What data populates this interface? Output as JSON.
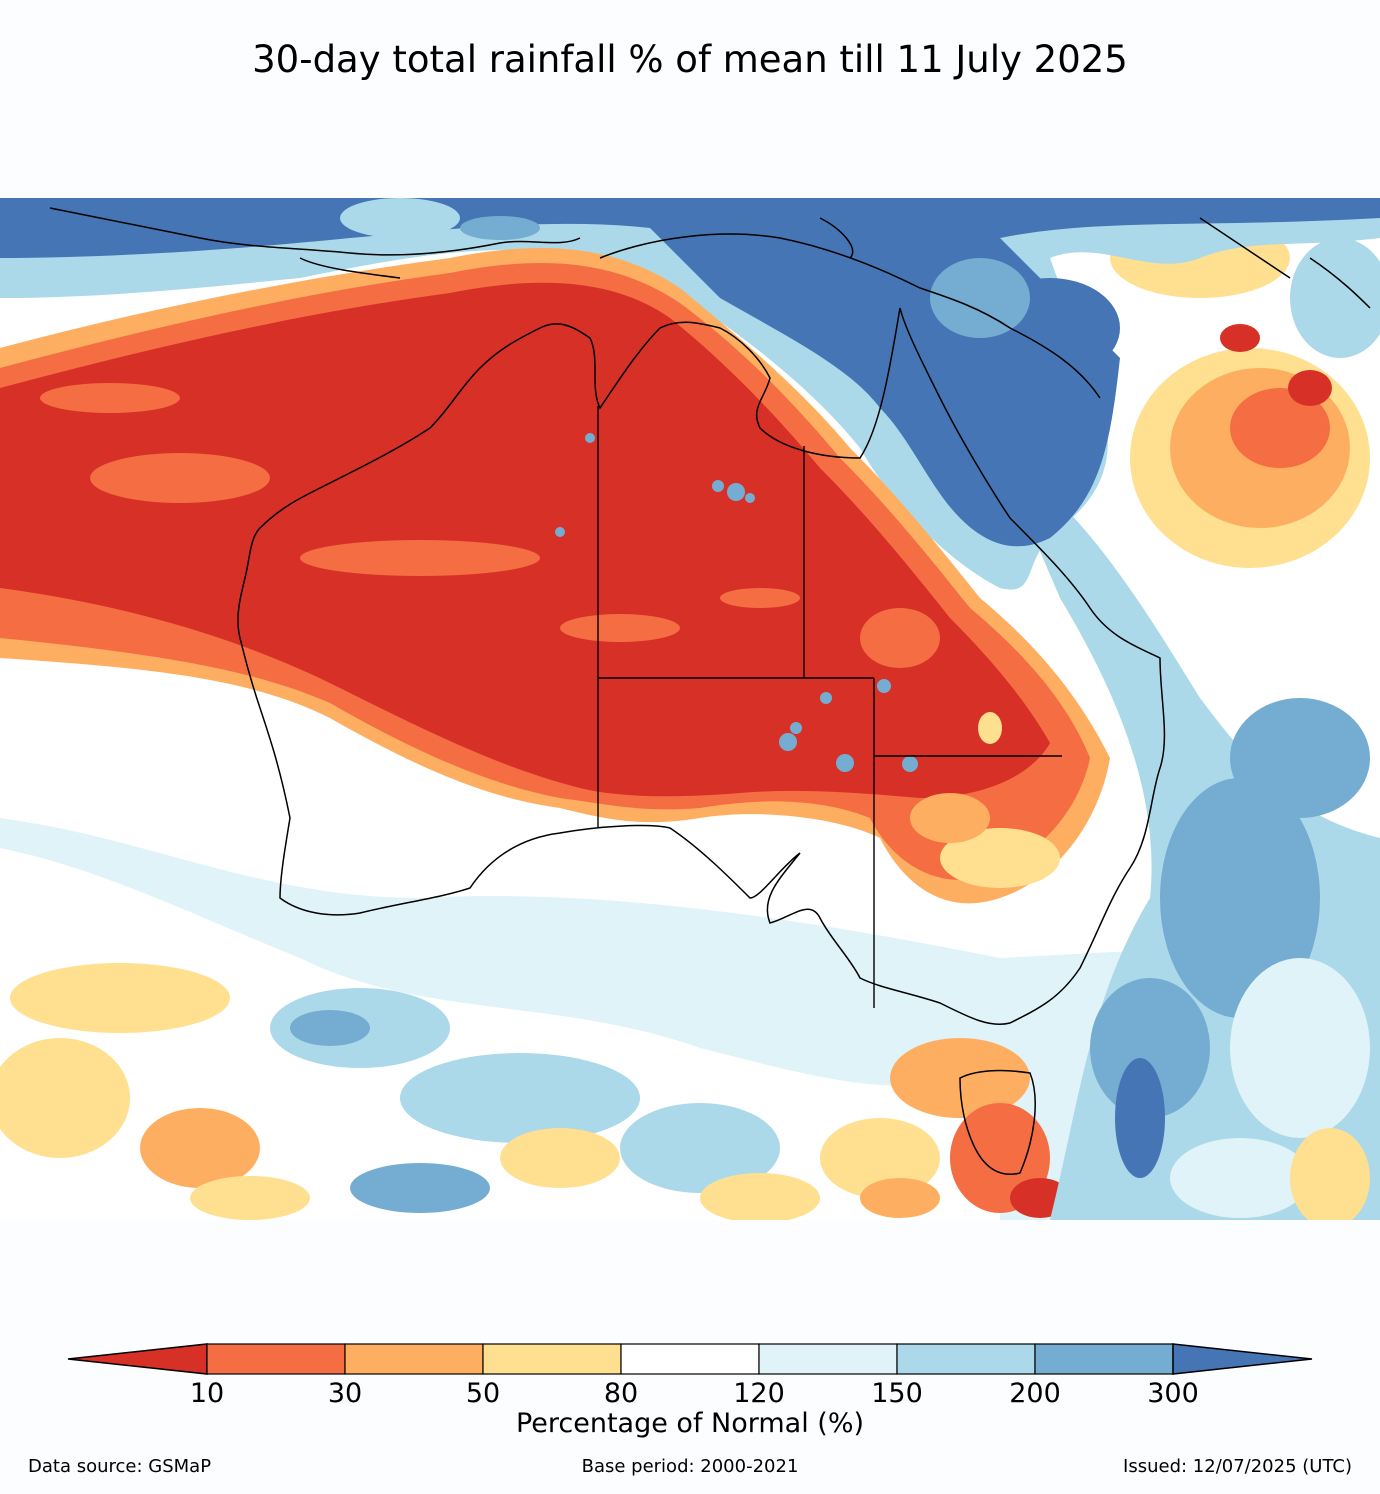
{
  "title": "30-day total rainfall % of mean till 11 July 2025",
  "colorbar": {
    "label": "Percentage of Normal (%)",
    "ticks": [
      "10",
      "30",
      "50",
      "80",
      "120",
      "150",
      "200",
      "300"
    ],
    "colors": [
      "#d73027",
      "#f46d43",
      "#fdae61",
      "#fee090",
      "#ffffff",
      "#e0f3f8",
      "#abd9e9",
      "#74add1",
      "#4575b4"
    ],
    "extend": "both"
  },
  "footer": {
    "source": "Data source: GSMaP",
    "base_period": "Base period: 2000-2021",
    "issued": "Issued: 12/07/2025 (UTC)"
  },
  "map": {
    "region": "Australia",
    "ocean_default": "#ffffff",
    "dry_color": "#d73027",
    "wet_color": "#4575b4"
  }
}
